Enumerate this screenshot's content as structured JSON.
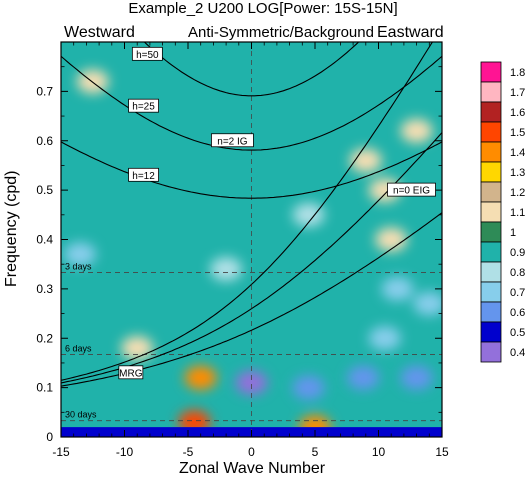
{
  "chart_data": {
    "type": "heatmap",
    "title": "Example_2 U200 LOG[Power: 15S-15N]",
    "subtitle": "Anti-Symmetric/Background",
    "left_label": "Westward",
    "right_label": "Eastward",
    "xlabel": "Zonal Wave Number",
    "ylabel": "Frequency (cpd)",
    "xlim": [
      -15,
      15
    ],
    "ylim": [
      0,
      0.8
    ],
    "x_ticks": [
      -15,
      -10,
      -5,
      0,
      5,
      10,
      15
    ],
    "y_ticks": [
      0,
      0.1,
      0.2,
      0.3,
      0.4,
      0.5,
      0.6,
      0.7
    ],
    "colorbar": {
      "levels": [
        "1.8",
        "1.7",
        "1.6",
        "1.5",
        "1.4",
        "1.3",
        "1.2",
        "1.1",
        "1",
        "0.9",
        "0.8",
        "0.7",
        "0.6",
        "0.5",
        "0.4"
      ],
      "colors": [
        "#ff1493",
        "#ffb6c1",
        "#b22222",
        "#ff4500",
        "#ff8c00",
        "#ffd700",
        "#d2b48c",
        "#f5deb3",
        "#2e8b57",
        "#20b2aa",
        "#b0e0e6",
        "#87ceeb",
        "#6495ed",
        "#0000cd",
        "#9370db"
      ]
    },
    "period_lines": [
      {
        "label": "3 days",
        "frequency": 0.333
      },
      {
        "label": "6 days",
        "frequency": 0.167
      },
      {
        "label": "30 days",
        "frequency": 0.033
      }
    ],
    "dispersion_labels": [
      {
        "label": "h=50",
        "x": -8.2,
        "y": 0.775
      },
      {
        "label": "h=25",
        "x": -8.5,
        "y": 0.67
      },
      {
        "label": "h=12",
        "x": -8.5,
        "y": 0.53
      },
      {
        "label": "n=2 IG",
        "x": -1.5,
        "y": 0.6
      },
      {
        "label": "n=0 EIG",
        "x": 12.6,
        "y": 0.5
      },
      {
        "label": "MRG",
        "x": -9.5,
        "y": 0.13
      }
    ],
    "anomalies": [
      {
        "x": 0,
        "y": 0.11,
        "value": 0.45
      },
      {
        "x": 4.5,
        "y": 0.1,
        "value": 0.6
      },
      {
        "x": 8.8,
        "y": 0.12,
        "value": 0.65
      },
      {
        "x": 11.5,
        "y": 0.3,
        "value": 0.75
      },
      {
        "x": 14,
        "y": 0.27,
        "value": 0.7
      },
      {
        "x": -2,
        "y": 0.34,
        "value": 0.8
      },
      {
        "x": 4.5,
        "y": 0.45,
        "value": 0.85
      },
      {
        "x": 10.5,
        "y": 0.5,
        "value": 1.15
      },
      {
        "x": 11,
        "y": 0.4,
        "value": 1.15
      },
      {
        "x": 13,
        "y": 0.62,
        "value": 1.15
      },
      {
        "x": 9,
        "y": 0.56,
        "value": 1.1
      },
      {
        "x": -12.5,
        "y": 0.72,
        "value": 1.1
      },
      {
        "x": -9,
        "y": 0.18,
        "value": 1.1
      },
      {
        "x": -4,
        "y": 0.12,
        "value": 1.45
      },
      {
        "x": -4.5,
        "y": 0.03,
        "value": 1.5
      },
      {
        "x": 5,
        "y": 0.02,
        "value": 1.4
      },
      {
        "x": 13,
        "y": 0.12,
        "value": 0.65
      },
      {
        "x": -13.5,
        "y": 0.37,
        "value": 0.7
      },
      {
        "x": 10.5,
        "y": 0.2,
        "value": 0.75
      }
    ]
  }
}
